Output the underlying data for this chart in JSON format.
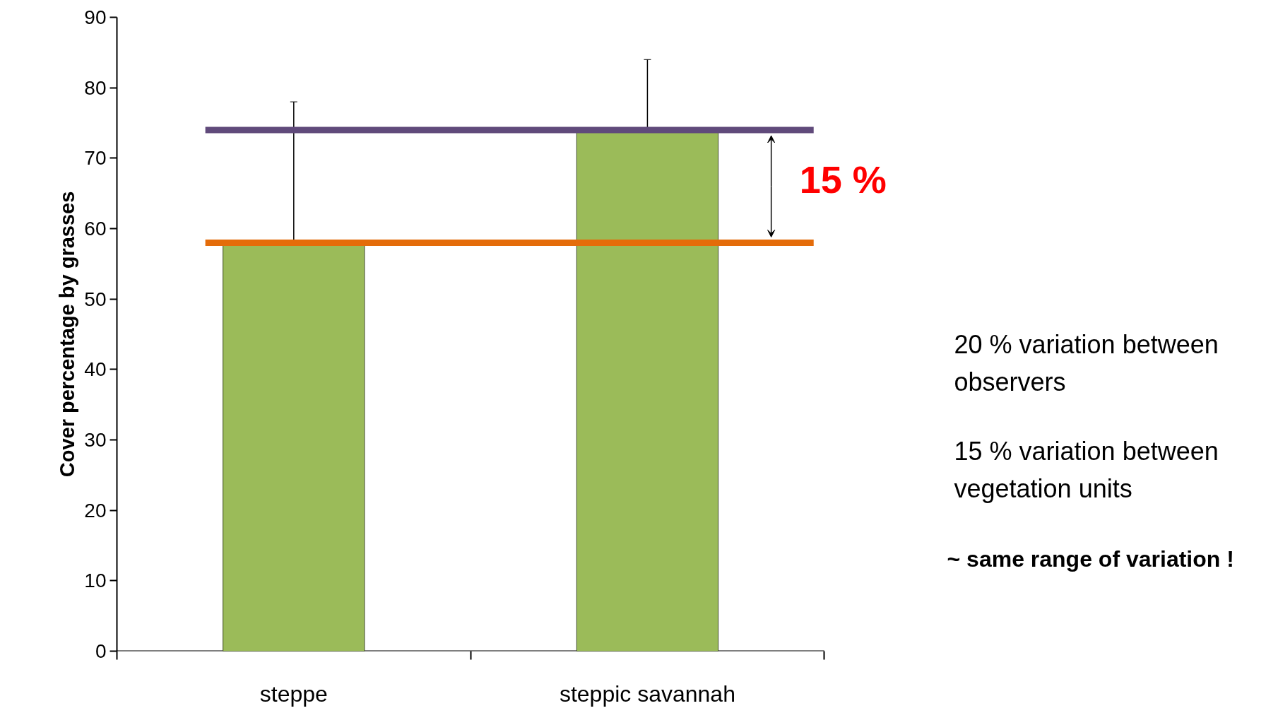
{
  "chart_data": {
    "type": "bar",
    "ylabel": "Cover percentage by grasses",
    "categories": [
      "steppe",
      "steppic savannah"
    ],
    "values": [
      58,
      74
    ],
    "color": "#9bbb59",
    "errors": [
      [
        58,
        78
      ],
      [
        74,
        84
      ]
    ],
    "ylim": [
      0,
      90
    ],
    "yticks": [
      0,
      10,
      20,
      30,
      40,
      50,
      60,
      70,
      80,
      90
    ],
    "grid": false,
    "ref_lines": [
      {
        "axis": "y",
        "value": 74,
        "color": "#604a7b"
      },
      {
        "axis": "y",
        "value": 58,
        "color": "#e46c0a"
      }
    ],
    "annotations": [
      "15 %",
      "20 % variation between\nobservers",
      "15 % variation between\nvegetation units",
      "~ same range of variation !"
    ]
  }
}
